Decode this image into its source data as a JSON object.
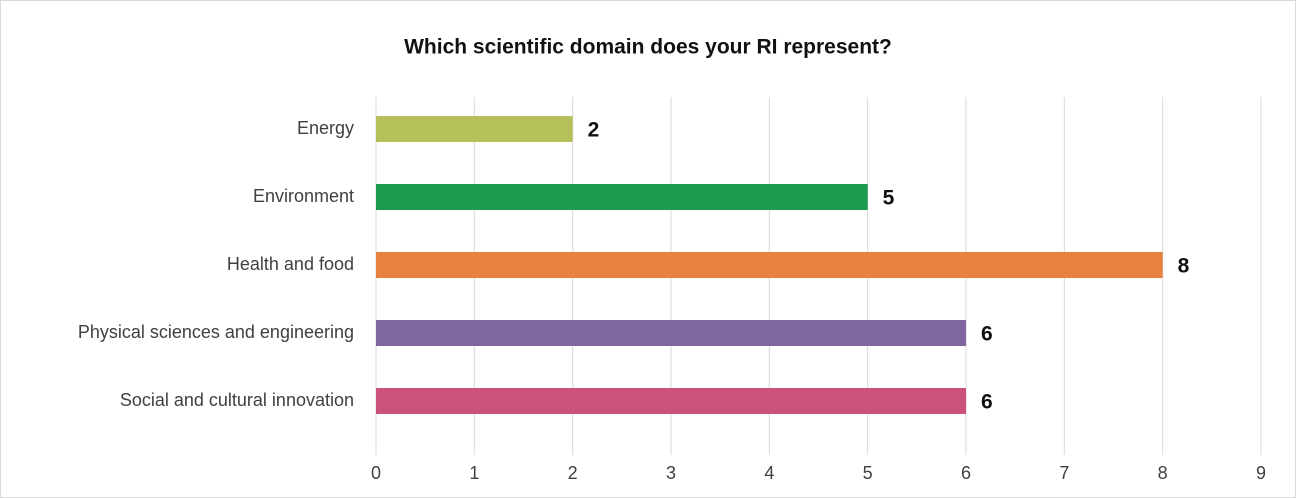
{
  "chart_data": {
    "type": "bar",
    "orientation": "horizontal",
    "title": "Which scientific domain does your RI represent?",
    "categories": [
      "Energy",
      "Environment",
      "Health and food",
      "Physical sciences and engineering",
      "Social and cultural innovation"
    ],
    "values": [
      2,
      5,
      8,
      6,
      6
    ],
    "colors": [
      "#b5c05b",
      "#1a9b50",
      "#e8803f",
      "#7f669e",
      "#cc527b"
    ],
    "xlim": [
      0,
      9
    ],
    "xticks": [
      0,
      1,
      2,
      3,
      4,
      5,
      6,
      7,
      8,
      9
    ],
    "grid": true
  }
}
